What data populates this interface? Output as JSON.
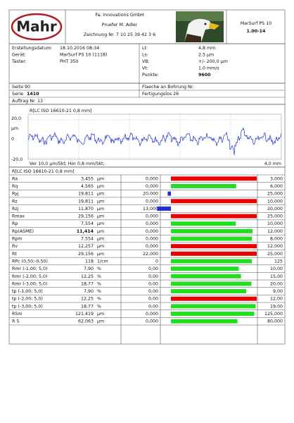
{
  "header": {
    "logo": "Mahr",
    "company": "Fa. Innovations GmbH",
    "inspector": "Pruefer M. Adler",
    "drawing": "Zeichnung Nr. 7 10 25 39 42 3 6",
    "device": "MarSurf PS 10",
    "version": "1.00-14"
  },
  "info": {
    "left": [
      [
        "Erstellungsdatum:",
        "18.10.2016  08:34"
      ],
      [
        "Gerät:",
        "MarSurf PS 10 (1118)"
      ],
      [
        "Taster:",
        "PHT 350"
      ]
    ],
    "right": [
      [
        "Lt:",
        "4,8 mm"
      ],
      [
        "Ls:",
        "2,5 µm"
      ],
      [
        "VB:",
        "+/- 200,0 µm"
      ],
      [
        "Vt:",
        "1,0 mm/s"
      ],
      [
        "Punkte:",
        "9600"
      ]
    ]
  },
  "meta": {
    "page": "Seite 90",
    "surface": "Flaeche an Bohrung Nr.",
    "series_label": "Serie",
    "series": "1410",
    "lot": "Fertigungslos 26",
    "order": "Auftrag Nr. 13"
  },
  "profile": {
    "title": "R[LC ISO 16610-21 0,8 mm]",
    "y_top": "20,0",
    "unit": "µm",
    "y_mid": "0",
    "y_bottom": "-20,0",
    "scale": "Ver 10,0 µm/Skt; Hor 0,8 mm/Skt;",
    "length": "4,0 mm"
  },
  "table": {
    "title": "R[LC ISO 16610-21 0,8 mm]",
    "rows": [
      [
        "Ra",
        "3,455",
        "µm",
        "0,000",
        "3,000"
      ],
      [
        "Rq",
        "4,565",
        "µm",
        "0,000",
        "6,000"
      ],
      [
        "Ryj",
        "19,811",
        "µm",
        "20,000",
        "25,000"
      ],
      [
        "Rz",
        "19,811",
        "µm",
        "0,000",
        "10,000"
      ],
      [
        "Rzj",
        "11,870",
        "µm",
        "13,000",
        "20,000"
      ],
      [
        "Rmax",
        "29,156",
        "µm",
        "0,000",
        "25,000"
      ],
      [
        "Rp",
        "7,554",
        "µm",
        "0,000",
        "10,000"
      ],
      [
        "Rp(ASME)",
        "11,414",
        "µm",
        "0,000",
        "12,000"
      ],
      [
        "Rpm",
        "7,554",
        "µm",
        "0,000",
        "8,000"
      ],
      [
        "Rv",
        "12,257",
        "µm",
        "0,000",
        "12,000"
      ],
      [
        "Rt",
        "29,156",
        "µm",
        "22,000",
        "25,000"
      ],
      [
        "RPc (0,50;-0,50)",
        "118",
        "1/cm",
        "0",
        "125"
      ],
      [
        "Rmr (-1,00; 5,0)",
        "7,90",
        "%",
        "0,00",
        "10,00"
      ],
      [
        "Rmr (-2,00; 5,0)",
        "12,25",
        "%",
        "0,00",
        "15,00"
      ],
      [
        "Rmr (-3,00; 5,0)",
        "18,77",
        "%",
        "0,00",
        "20,00"
      ],
      [
        "tp (-1,00; 5,0)",
        "7,90",
        "%",
        "0,00",
        "9,00"
      ],
      [
        "tp (-2,00; 5,0)",
        "12,25",
        "%",
        "0,00",
        "12,00"
      ],
      [
        "tp (-3,00; 5,0)",
        "18,77",
        "%",
        "0,00",
        "19,00"
      ],
      [
        "RSm",
        "121,419",
        "µm",
        "0,000",
        "125,000"
      ],
      [
        "R S",
        "62,063",
        "µm",
        "0,000",
        "80,000"
      ]
    ]
  }
}
